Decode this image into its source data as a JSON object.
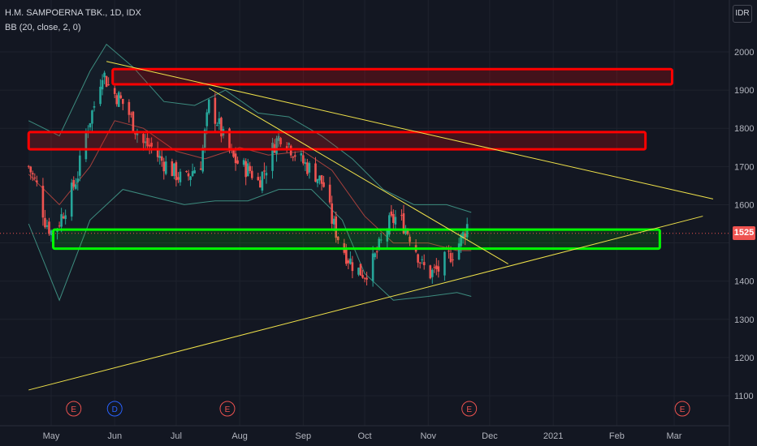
{
  "header": {
    "symbol_title": "H.M. SAMPOERNA TBK., 1D, IDX",
    "indicator": "BB (20, close, 2, 0)",
    "currency": "IDR"
  },
  "chart_data": {
    "type": "candlestick",
    "title": "H.M. SAMPOERNA TBK., 1D, IDX",
    "currency": "IDR",
    "last_price": 1525,
    "y_ticks": [
      2000,
      1900,
      1800,
      1700,
      1600,
      1500,
      1400,
      1300,
      1200,
      1100
    ],
    "y_tick_labels": [
      "2000",
      "1900",
      "1800",
      "1700",
      "1600",
      "",
      "1400",
      "1300",
      "1200",
      "1100"
    ],
    "ylim": [
      1080,
      2100
    ],
    "x_tick_labels": [
      {
        "label": "May",
        "date": "2020-05-01"
      },
      {
        "label": "Jun",
        "date": "2020-06-01"
      },
      {
        "label": "Jul",
        "date": "2020-07-01"
      },
      {
        "label": "Aug",
        "date": "2020-08-01"
      },
      {
        "label": "Sep",
        "date": "2020-09-01"
      },
      {
        "label": "Oct",
        "date": "2020-10-01"
      },
      {
        "label": "Nov",
        "date": "2020-11-01"
      },
      {
        "label": "Dec",
        "date": "2020-12-01"
      },
      {
        "label": "2021",
        "date": "2021-01-01"
      },
      {
        "label": "Feb",
        "date": "2021-02-01"
      },
      {
        "label": "Mar",
        "date": "2021-03-01"
      }
    ],
    "close_series": [
      [
        "2020-04-20",
        1700
      ],
      [
        "2020-04-24",
        1650
      ],
      [
        "2020-04-28",
        1560
      ],
      [
        "2020-05-02",
        1520
      ],
      [
        "2020-05-06",
        1570
      ],
      [
        "2020-05-10",
        1620
      ],
      [
        "2020-05-14",
        1680
      ],
      [
        "2020-05-18",
        1790
      ],
      [
        "2020-05-22",
        1860
      ],
      [
        "2020-05-26",
        1950
      ],
      [
        "2020-05-30",
        1900
      ],
      [
        "2020-06-03",
        1880
      ],
      [
        "2020-06-07",
        1850
      ],
      [
        "2020-06-11",
        1800
      ],
      [
        "2020-06-15",
        1760
      ],
      [
        "2020-06-19",
        1750
      ],
      [
        "2020-06-23",
        1720
      ],
      [
        "2020-06-27",
        1700
      ],
      [
        "2020-07-01",
        1680
      ],
      [
        "2020-07-05",
        1660
      ],
      [
        "2020-07-09",
        1690
      ],
      [
        "2020-07-13",
        1710
      ],
      [
        "2020-07-17",
        1860
      ],
      [
        "2020-07-21",
        1820
      ],
      [
        "2020-07-25",
        1760
      ],
      [
        "2020-07-29",
        1720
      ],
      [
        "2020-08-02",
        1700
      ],
      [
        "2020-08-06",
        1690
      ],
      [
        "2020-08-10",
        1660
      ],
      [
        "2020-08-14",
        1700
      ],
      [
        "2020-08-18",
        1760
      ],
      [
        "2020-08-22",
        1790
      ],
      [
        "2020-08-26",
        1750
      ],
      [
        "2020-08-30",
        1720
      ],
      [
        "2020-09-03",
        1700
      ],
      [
        "2020-09-07",
        1680
      ],
      [
        "2020-09-11",
        1650
      ],
      [
        "2020-09-15",
        1560
      ],
      [
        "2020-09-19",
        1500
      ],
      [
        "2020-09-23",
        1460
      ],
      [
        "2020-09-27",
        1430
      ],
      [
        "2020-10-01",
        1420
      ],
      [
        "2020-10-05",
        1450
      ],
      [
        "2020-10-09",
        1500
      ],
      [
        "2020-10-13",
        1550
      ],
      [
        "2020-10-17",
        1570
      ],
      [
        "2020-10-21",
        1540
      ],
      [
        "2020-10-25",
        1500
      ],
      [
        "2020-10-29",
        1440
      ],
      [
        "2020-11-02",
        1420
      ],
      [
        "2020-11-06",
        1430
      ],
      [
        "2020-11-10",
        1460
      ],
      [
        "2020-11-14",
        1480
      ],
      [
        "2020-11-18",
        1520
      ],
      [
        "2020-11-21",
        1560
      ],
      [
        "2020-11-22",
        1525
      ]
    ],
    "bollinger": {
      "period": 20,
      "source": "close",
      "stddev": 2,
      "offset": 0,
      "upper": [
        [
          "2020-04-20",
          1820
        ],
        [
          "2020-05-05",
          1780
        ],
        [
          "2020-05-20",
          1950
        ],
        [
          "2020-05-28",
          2020
        ],
        [
          "2020-06-10",
          1960
        ],
        [
          "2020-06-25",
          1870
        ],
        [
          "2020-07-10",
          1860
        ],
        [
          "2020-07-25",
          1900
        ],
        [
          "2020-08-10",
          1840
        ],
        [
          "2020-08-25",
          1830
        ],
        [
          "2020-09-10",
          1780
        ],
        [
          "2020-09-25",
          1720
        ],
        [
          "2020-10-10",
          1640
        ],
        [
          "2020-10-25",
          1600
        ],
        [
          "2020-11-10",
          1600
        ],
        [
          "2020-11-22",
          1580
        ]
      ],
      "middle": [
        [
          "2020-04-20",
          1680
        ],
        [
          "2020-05-05",
          1600
        ],
        [
          "2020-05-20",
          1700
        ],
        [
          "2020-06-01",
          1820
        ],
        [
          "2020-06-15",
          1800
        ],
        [
          "2020-07-01",
          1740
        ],
        [
          "2020-07-15",
          1720
        ],
        [
          "2020-08-01",
          1750
        ],
        [
          "2020-08-15",
          1730
        ],
        [
          "2020-09-01",
          1740
        ],
        [
          "2020-09-15",
          1690
        ],
        [
          "2020-10-01",
          1570
        ],
        [
          "2020-10-15",
          1500
        ],
        [
          "2020-11-01",
          1500
        ],
        [
          "2020-11-15",
          1480
        ],
        [
          "2020-11-22",
          1480
        ]
      ],
      "lower": [
        [
          "2020-04-20",
          1550
        ],
        [
          "2020-05-05",
          1350
        ],
        [
          "2020-05-20",
          1560
        ],
        [
          "2020-06-05",
          1640
        ],
        [
          "2020-06-20",
          1620
        ],
        [
          "2020-07-05",
          1600
        ],
        [
          "2020-07-20",
          1610
        ],
        [
          "2020-08-05",
          1610
        ],
        [
          "2020-08-20",
          1640
        ],
        [
          "2020-09-05",
          1640
        ],
        [
          "2020-09-20",
          1560
        ],
        [
          "2020-10-01",
          1420
        ],
        [
          "2020-10-15",
          1350
        ],
        [
          "2020-11-01",
          1360
        ],
        [
          "2020-11-15",
          1370
        ],
        [
          "2020-11-22",
          1360
        ]
      ]
    },
    "drawings": {
      "resistance_zones": [
        {
          "y_top": 1955,
          "y_bottom": 1915,
          "x_start": "2020-05-31",
          "x_end": "2021-02-28",
          "color": "#ff0000"
        },
        {
          "y_top": 1790,
          "y_bottom": 1745,
          "x_start": "2020-04-20",
          "x_end": "2021-02-15",
          "color": "#ff0000"
        }
      ],
      "support_zones": [
        {
          "y_top": 1535,
          "y_bottom": 1485,
          "x_start": "2020-05-02",
          "x_end": "2021-02-22",
          "color": "#00ff00"
        }
      ],
      "trend_lines": [
        {
          "from": [
            "2020-05-28",
            1975
          ],
          "to": [
            "2021-03-20",
            1615
          ],
          "color": "#f0e24a"
        },
        {
          "from": [
            "2020-07-17",
            1905
          ],
          "to": [
            "2020-12-10",
            1445
          ],
          "color": "#f0e24a"
        },
        {
          "from": [
            "2020-04-20",
            1115
          ],
          "to": [
            "2021-03-15",
            1570
          ],
          "color": "#f0e24a"
        }
      ]
    },
    "event_markers": [
      {
        "date": "2020-05-12",
        "label": "E",
        "color": "#ef5350"
      },
      {
        "date": "2020-06-01",
        "label": "D",
        "color": "#2962ff"
      },
      {
        "date": "2020-07-26",
        "label": "E",
        "color": "#ef5350"
      },
      {
        "date": "2020-11-21",
        "label": "E",
        "color": "#ef5350"
      },
      {
        "date": "2021-03-05",
        "label": "E",
        "color": "#ef5350"
      }
    ],
    "colors": {
      "up": "#26a69a",
      "down": "#ef5350",
      "band": "#3d8c7f",
      "basis": "#a6403c",
      "background": "#131722",
      "grid": "#1e222d",
      "text": "#b2b5be"
    }
  }
}
